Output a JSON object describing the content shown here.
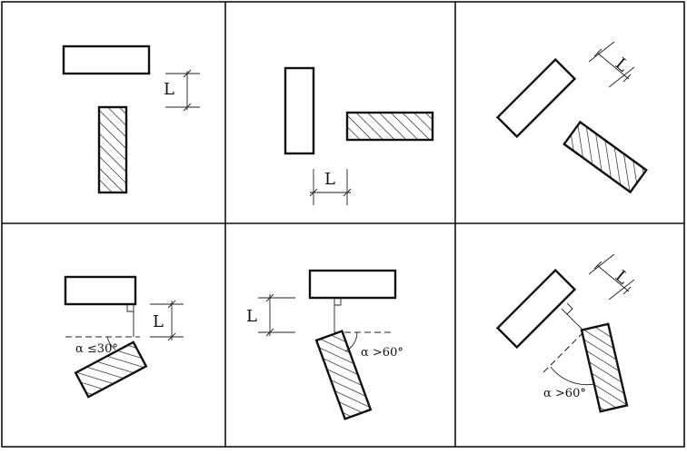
{
  "panels": [
    {
      "id": "p1",
      "dim_label": "L"
    },
    {
      "id": "p2",
      "dim_label": "L"
    },
    {
      "id": "p3",
      "dim_label": "L"
    },
    {
      "id": "p4",
      "dim_label": "L",
      "angle_label": "α ≤30°"
    },
    {
      "id": "p5",
      "dim_label": "L",
      "angle_label": "α >60°"
    },
    {
      "id": "p6",
      "dim_label": "L",
      "angle_label": "α >60°"
    }
  ],
  "colors": {
    "line": "#111111",
    "background": "#ffffff"
  }
}
